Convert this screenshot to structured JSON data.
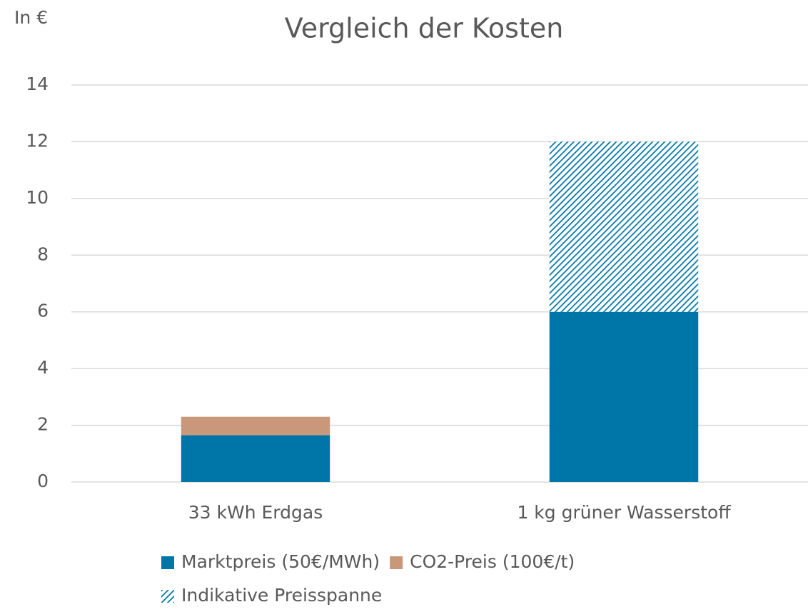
{
  "chart_data": {
    "type": "stacked-bar",
    "title": "Vergleich der Kosten",
    "y_label": "In €",
    "categories": [
      "33 kWh Erdgas",
      "1 kg grüner Wasserstoff"
    ],
    "series": [
      {
        "name": "Marktpreis (50€/MWh)",
        "color": "#0076a8",
        "values": [
          1.65,
          6
        ]
      },
      {
        "name": "CO2-Preis (100€/t)",
        "color": "#c9987a",
        "values": [
          0.65,
          null
        ]
      },
      {
        "name": "Indikative Preisspanne",
        "color": "#0076a8",
        "hatched": true,
        "values": [
          null,
          6
        ]
      }
    ],
    "ylim": [
      0,
      14
    ],
    "yticks": [
      0,
      2,
      4,
      6,
      8,
      10,
      12,
      14
    ],
    "grid": true,
    "legend": "bottom"
  }
}
